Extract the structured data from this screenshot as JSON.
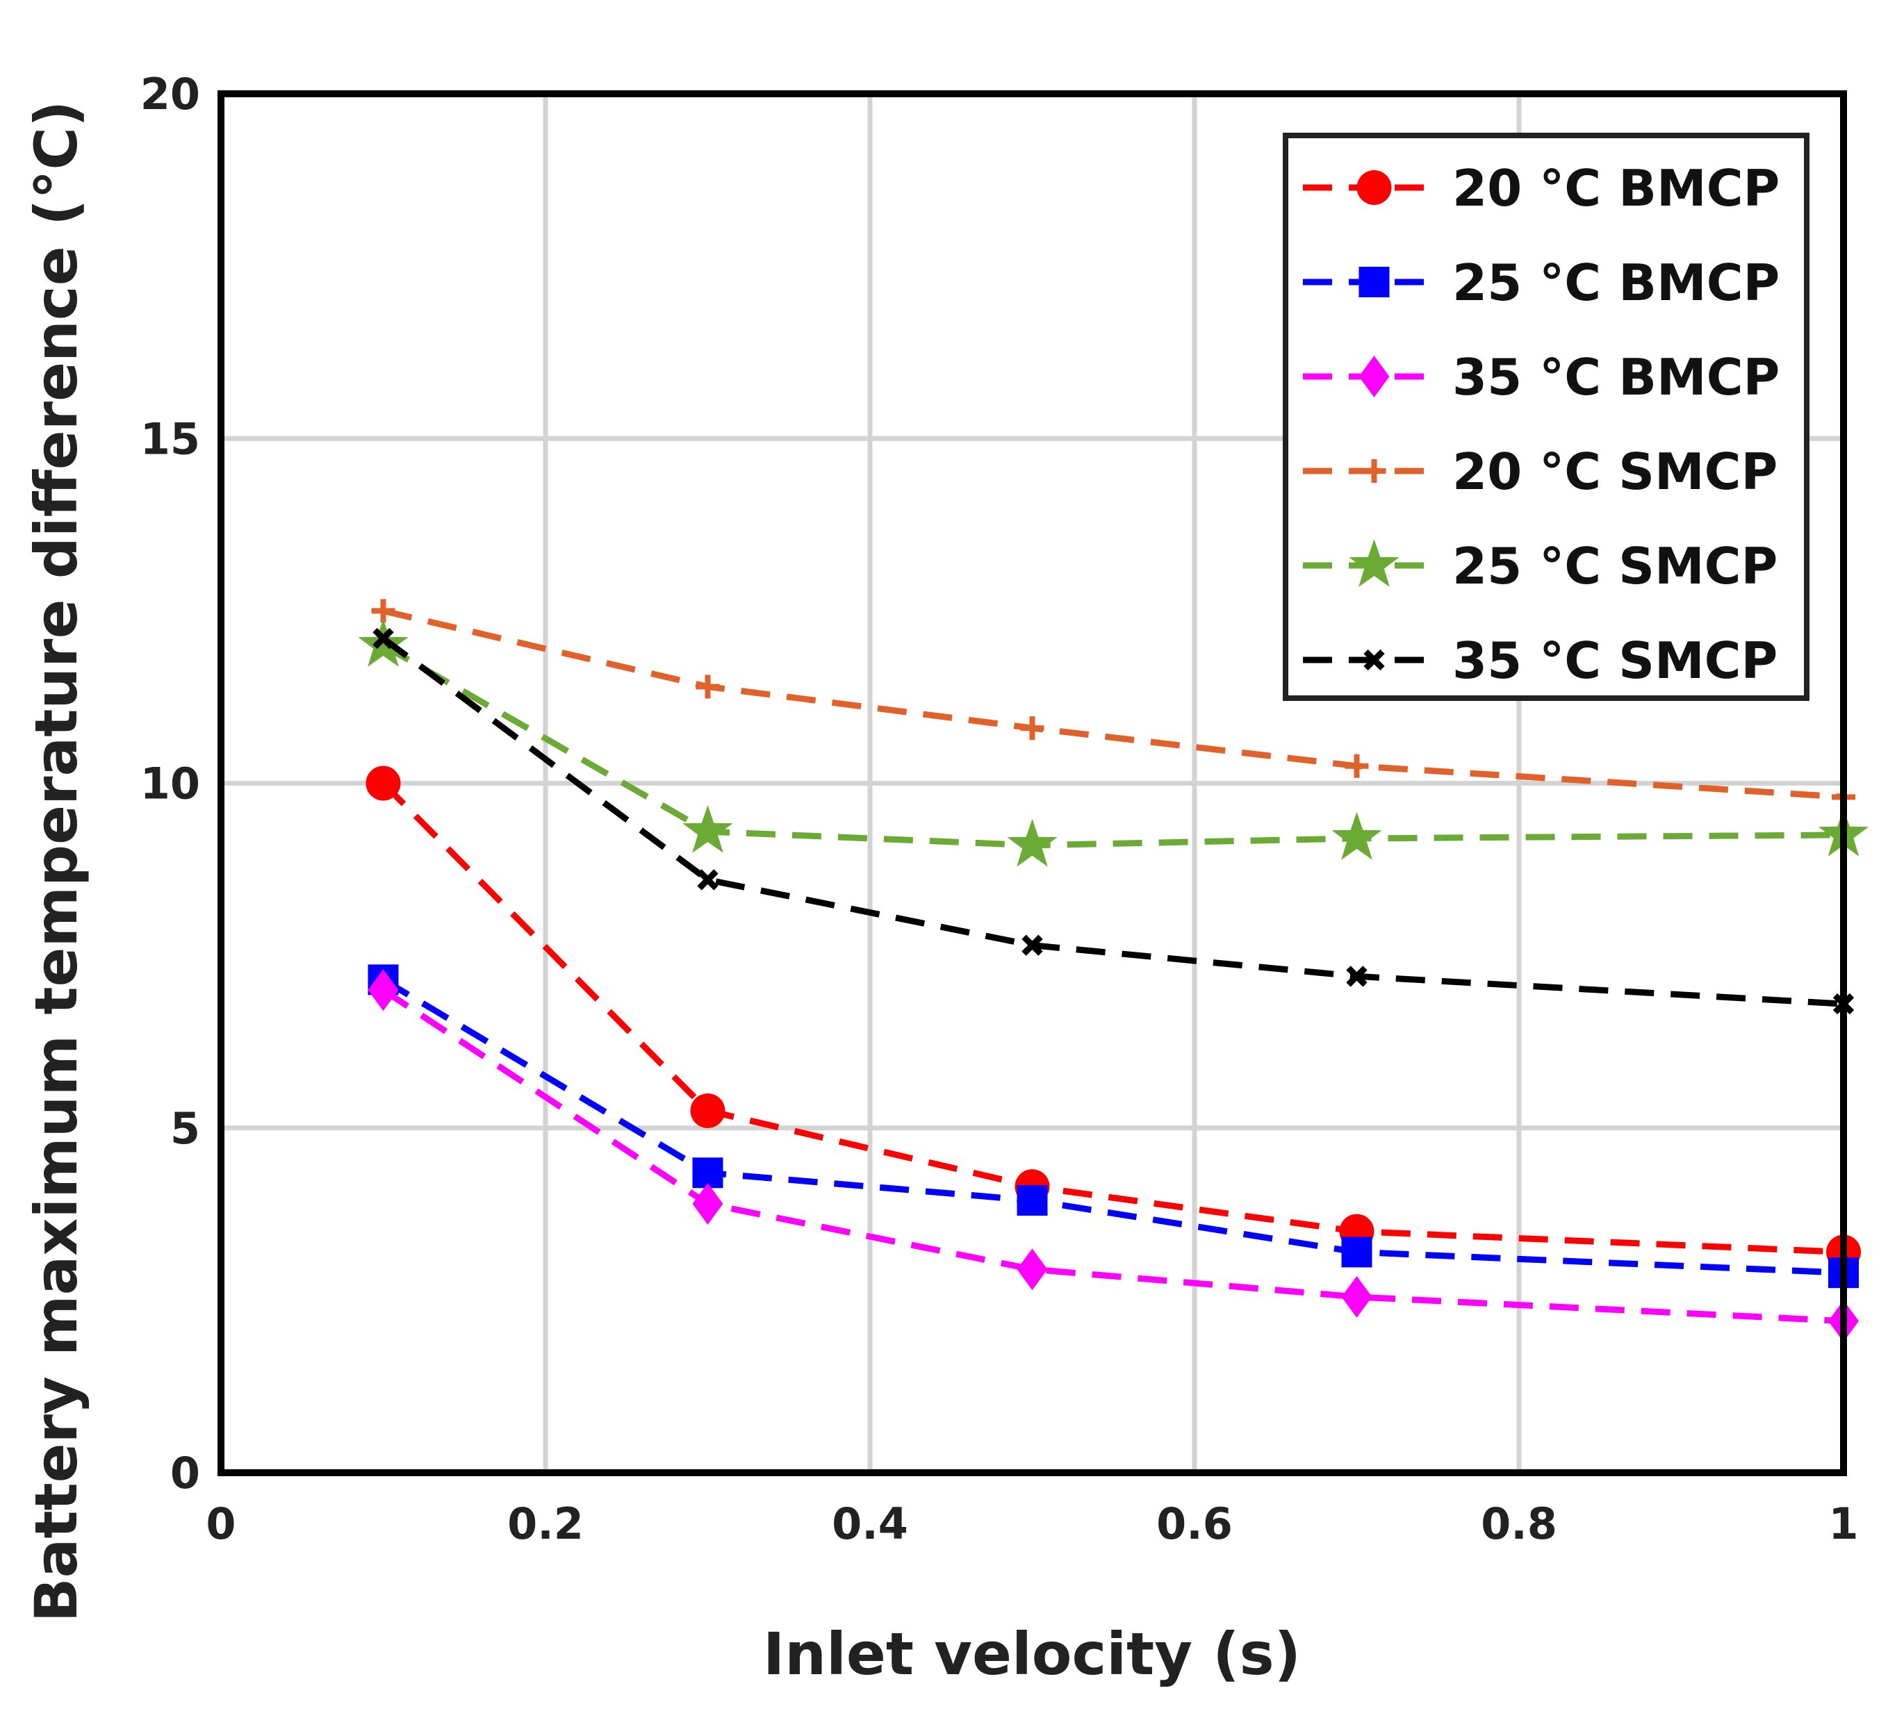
{
  "chart_data": {
    "type": "line",
    "title": "",
    "xlabel": "Inlet velocity (s)",
    "ylabel": "Battery maximum temperature difference (°C)",
    "xlim": [
      0,
      1
    ],
    "ylim": [
      0,
      20
    ],
    "xticks": [
      0,
      0.2,
      0.4,
      0.6,
      0.8,
      1
    ],
    "xtick_labels": [
      "0",
      "0.2",
      "0.4",
      "0.6",
      "0.8",
      "1"
    ],
    "yticks": [
      0,
      5,
      10,
      15,
      20
    ],
    "ytick_labels": [
      "0",
      "5",
      "10",
      "15",
      "20"
    ],
    "grid": true,
    "legend_position": "top-right",
    "x": [
      0.1,
      0.3,
      0.5,
      0.7,
      1.0
    ],
    "series": [
      {
        "name": "20 °C BMCP",
        "color": "#ff0000",
        "marker": "circle",
        "values": [
          10.0,
          5.25,
          4.15,
          3.5,
          3.2
        ]
      },
      {
        "name": "25 °C BMCP",
        "color": "#0000ff",
        "marker": "square",
        "values": [
          7.15,
          4.35,
          3.95,
          3.2,
          2.9
        ]
      },
      {
        "name": "35 °C BMCP",
        "color": "#ff00ff",
        "marker": "diamond",
        "values": [
          7.0,
          3.9,
          2.95,
          2.55,
          2.2
        ]
      },
      {
        "name": "20 °C SMCP",
        "color": "#e0622a",
        "marker": "plus",
        "values": [
          12.5,
          11.4,
          10.8,
          10.25,
          9.8
        ]
      },
      {
        "name": "25 °C SMCP",
        "color": "#6aaa35",
        "marker": "star",
        "values": [
          12.0,
          9.3,
          9.1,
          9.2,
          9.25
        ]
      },
      {
        "name": "35 °C SMCP",
        "color": "#000000",
        "marker": "x",
        "values": [
          12.1,
          8.6,
          7.65,
          7.2,
          6.8
        ]
      }
    ]
  }
}
